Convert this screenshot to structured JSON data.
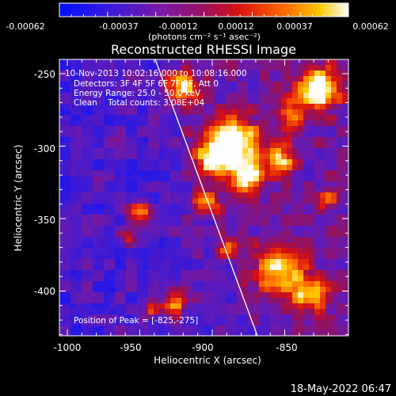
{
  "colorbar": {
    "tick_labels": [
      "-0.00062",
      "-0.00037",
      "-0.00012",
      "0.00012",
      "0.00037",
      "0.00062"
    ],
    "units_label": "(photons cm⁻² s⁻¹ asec⁻²)"
  },
  "title": "Reconstructed RHESSI Image",
  "info": {
    "time_range": "10-Nov-2013 10:02:16.000 to 10:08:16.000",
    "detectors": "Detectors: 3F 4F 5F 6F 7F 8F, Att 0",
    "energy": "Energy Range: 25.0 - 50.0 keV",
    "clean": "Clean    Total counts: 3.08E+04",
    "peak": "Position of Peak = [-825,-275]"
  },
  "axes": {
    "xlabel": "Heliocentric X (arcsec)",
    "ylabel": "Heliocentric Y (arcsec)",
    "xticks": [
      "-1000",
      "-950",
      "-900",
      "-850"
    ],
    "yticks": [
      "-250",
      "-300",
      "-350",
      "-400"
    ]
  },
  "footer_timestamp": "18-May-2022 06:47",
  "colors": {
    "background": "#000000",
    "limb_line": "#ffffff",
    "colormap_low": "#0000ff",
    "colormap_mid": "#7a1aa6",
    "colormap_high": "#ffffff"
  }
}
